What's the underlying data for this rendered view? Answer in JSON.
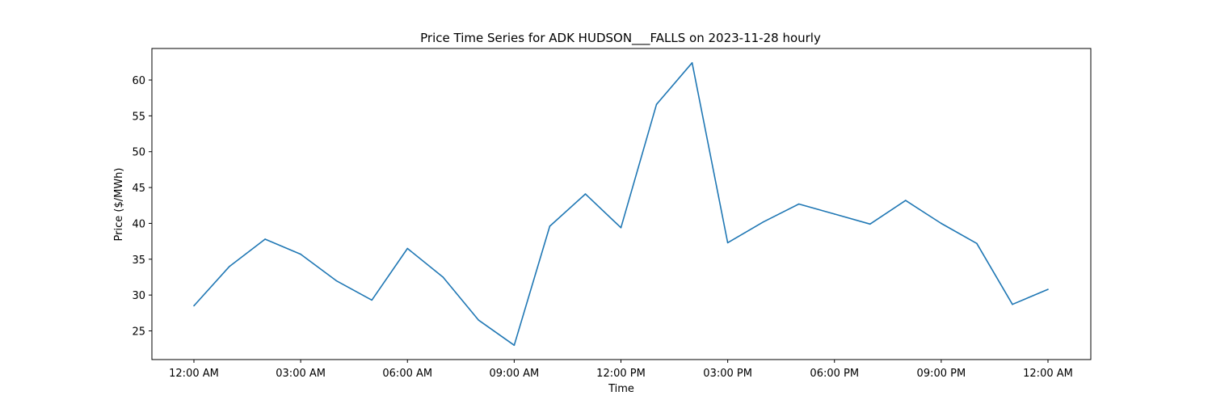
{
  "chart_data": {
    "type": "line",
    "title": "Price Time Series for ADK HUDSON___FALLS on 2023-11-28 hourly",
    "xlabel": "Time",
    "ylabel": "Price ($/MWh)",
    "x": [
      "2023-11-28 00:00",
      "2023-11-28 01:00",
      "2023-11-28 02:00",
      "2023-11-28 03:00",
      "2023-11-28 04:00",
      "2023-11-28 05:00",
      "2023-11-28 06:00",
      "2023-11-28 07:00",
      "2023-11-28 08:00",
      "2023-11-28 09:00",
      "2023-11-28 10:00",
      "2023-11-28 11:00",
      "2023-11-28 12:00",
      "2023-11-28 13:00",
      "2023-11-28 14:00",
      "2023-11-28 15:00",
      "2023-11-28 16:00",
      "2023-11-28 17:00",
      "2023-11-28 18:00",
      "2023-11-28 19:00",
      "2023-11-28 20:00",
      "2023-11-28 21:00",
      "2023-11-28 22:00",
      "2023-11-28 23:00",
      "2023-11-29 00:00"
    ],
    "series": [
      {
        "color": "#1f77b4",
        "values": [
          28.5,
          34.0,
          37.8,
          35.7,
          32.0,
          29.3,
          36.5,
          32.5,
          26.5,
          23.0,
          39.6,
          44.1,
          39.4,
          56.6,
          62.4,
          37.3,
          40.2,
          42.7,
          41.3,
          39.9,
          43.2,
          40.0,
          37.2,
          28.7,
          30.8
        ]
      }
    ],
    "xticks": [
      "12:00 AM",
      "03:00 AM",
      "06:00 AM",
      "09:00 AM",
      "12:00 PM",
      "03:00 PM",
      "06:00 PM",
      "09:00 PM",
      "12:00 AM"
    ],
    "xtick_hours": [
      0,
      3,
      6,
      9,
      12,
      15,
      18,
      21,
      24
    ],
    "yticks": [
      25,
      30,
      35,
      40,
      45,
      50,
      55,
      60
    ],
    "ylim": [
      21.0,
      64.4
    ],
    "grid": false,
    "legend": "none"
  }
}
